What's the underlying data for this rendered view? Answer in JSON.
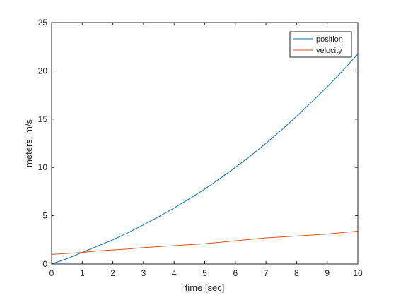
{
  "chart_data": {
    "type": "line",
    "title": "",
    "xlabel": "time [sec]",
    "ylabel": "meters, m/s",
    "xlim": [
      0,
      10
    ],
    "ylim": [
      0,
      25
    ],
    "xticks": [
      0,
      1,
      2,
      3,
      4,
      5,
      6,
      7,
      8,
      9,
      10
    ],
    "yticks": [
      0,
      5,
      10,
      15,
      20,
      25
    ],
    "grid": false,
    "legend_position": "top-right",
    "series": [
      {
        "name": "position",
        "color": "#0072BD",
        "x": [
          0,
          0.5,
          1,
          1.5,
          2,
          2.5,
          3,
          3.5,
          4,
          4.5,
          5,
          5.5,
          6,
          6.5,
          7,
          7.5,
          8,
          8.5,
          9,
          9.5,
          10
        ],
        "y": [
          0,
          0.55,
          1.2,
          1.85,
          2.5,
          3.25,
          4.05,
          4.9,
          5.8,
          6.75,
          7.75,
          8.85,
          10.0,
          11.2,
          12.5,
          13.85,
          15.3,
          16.8,
          18.35,
          20.0,
          21.75
        ]
      },
      {
        "name": "velocity",
        "color": "#D95319",
        "x": [
          0,
          0.5,
          1,
          1.5,
          2,
          2.5,
          3,
          3.5,
          4,
          4.5,
          5,
          5.5,
          6,
          6.5,
          7,
          7.5,
          8,
          8.5,
          9,
          9.5,
          10
        ],
        "y": [
          1.0,
          1.1,
          1.2,
          1.35,
          1.45,
          1.55,
          1.7,
          1.8,
          1.9,
          2.0,
          2.1,
          2.25,
          2.4,
          2.55,
          2.7,
          2.8,
          2.9,
          3.0,
          3.1,
          3.25,
          3.4
        ]
      }
    ]
  }
}
